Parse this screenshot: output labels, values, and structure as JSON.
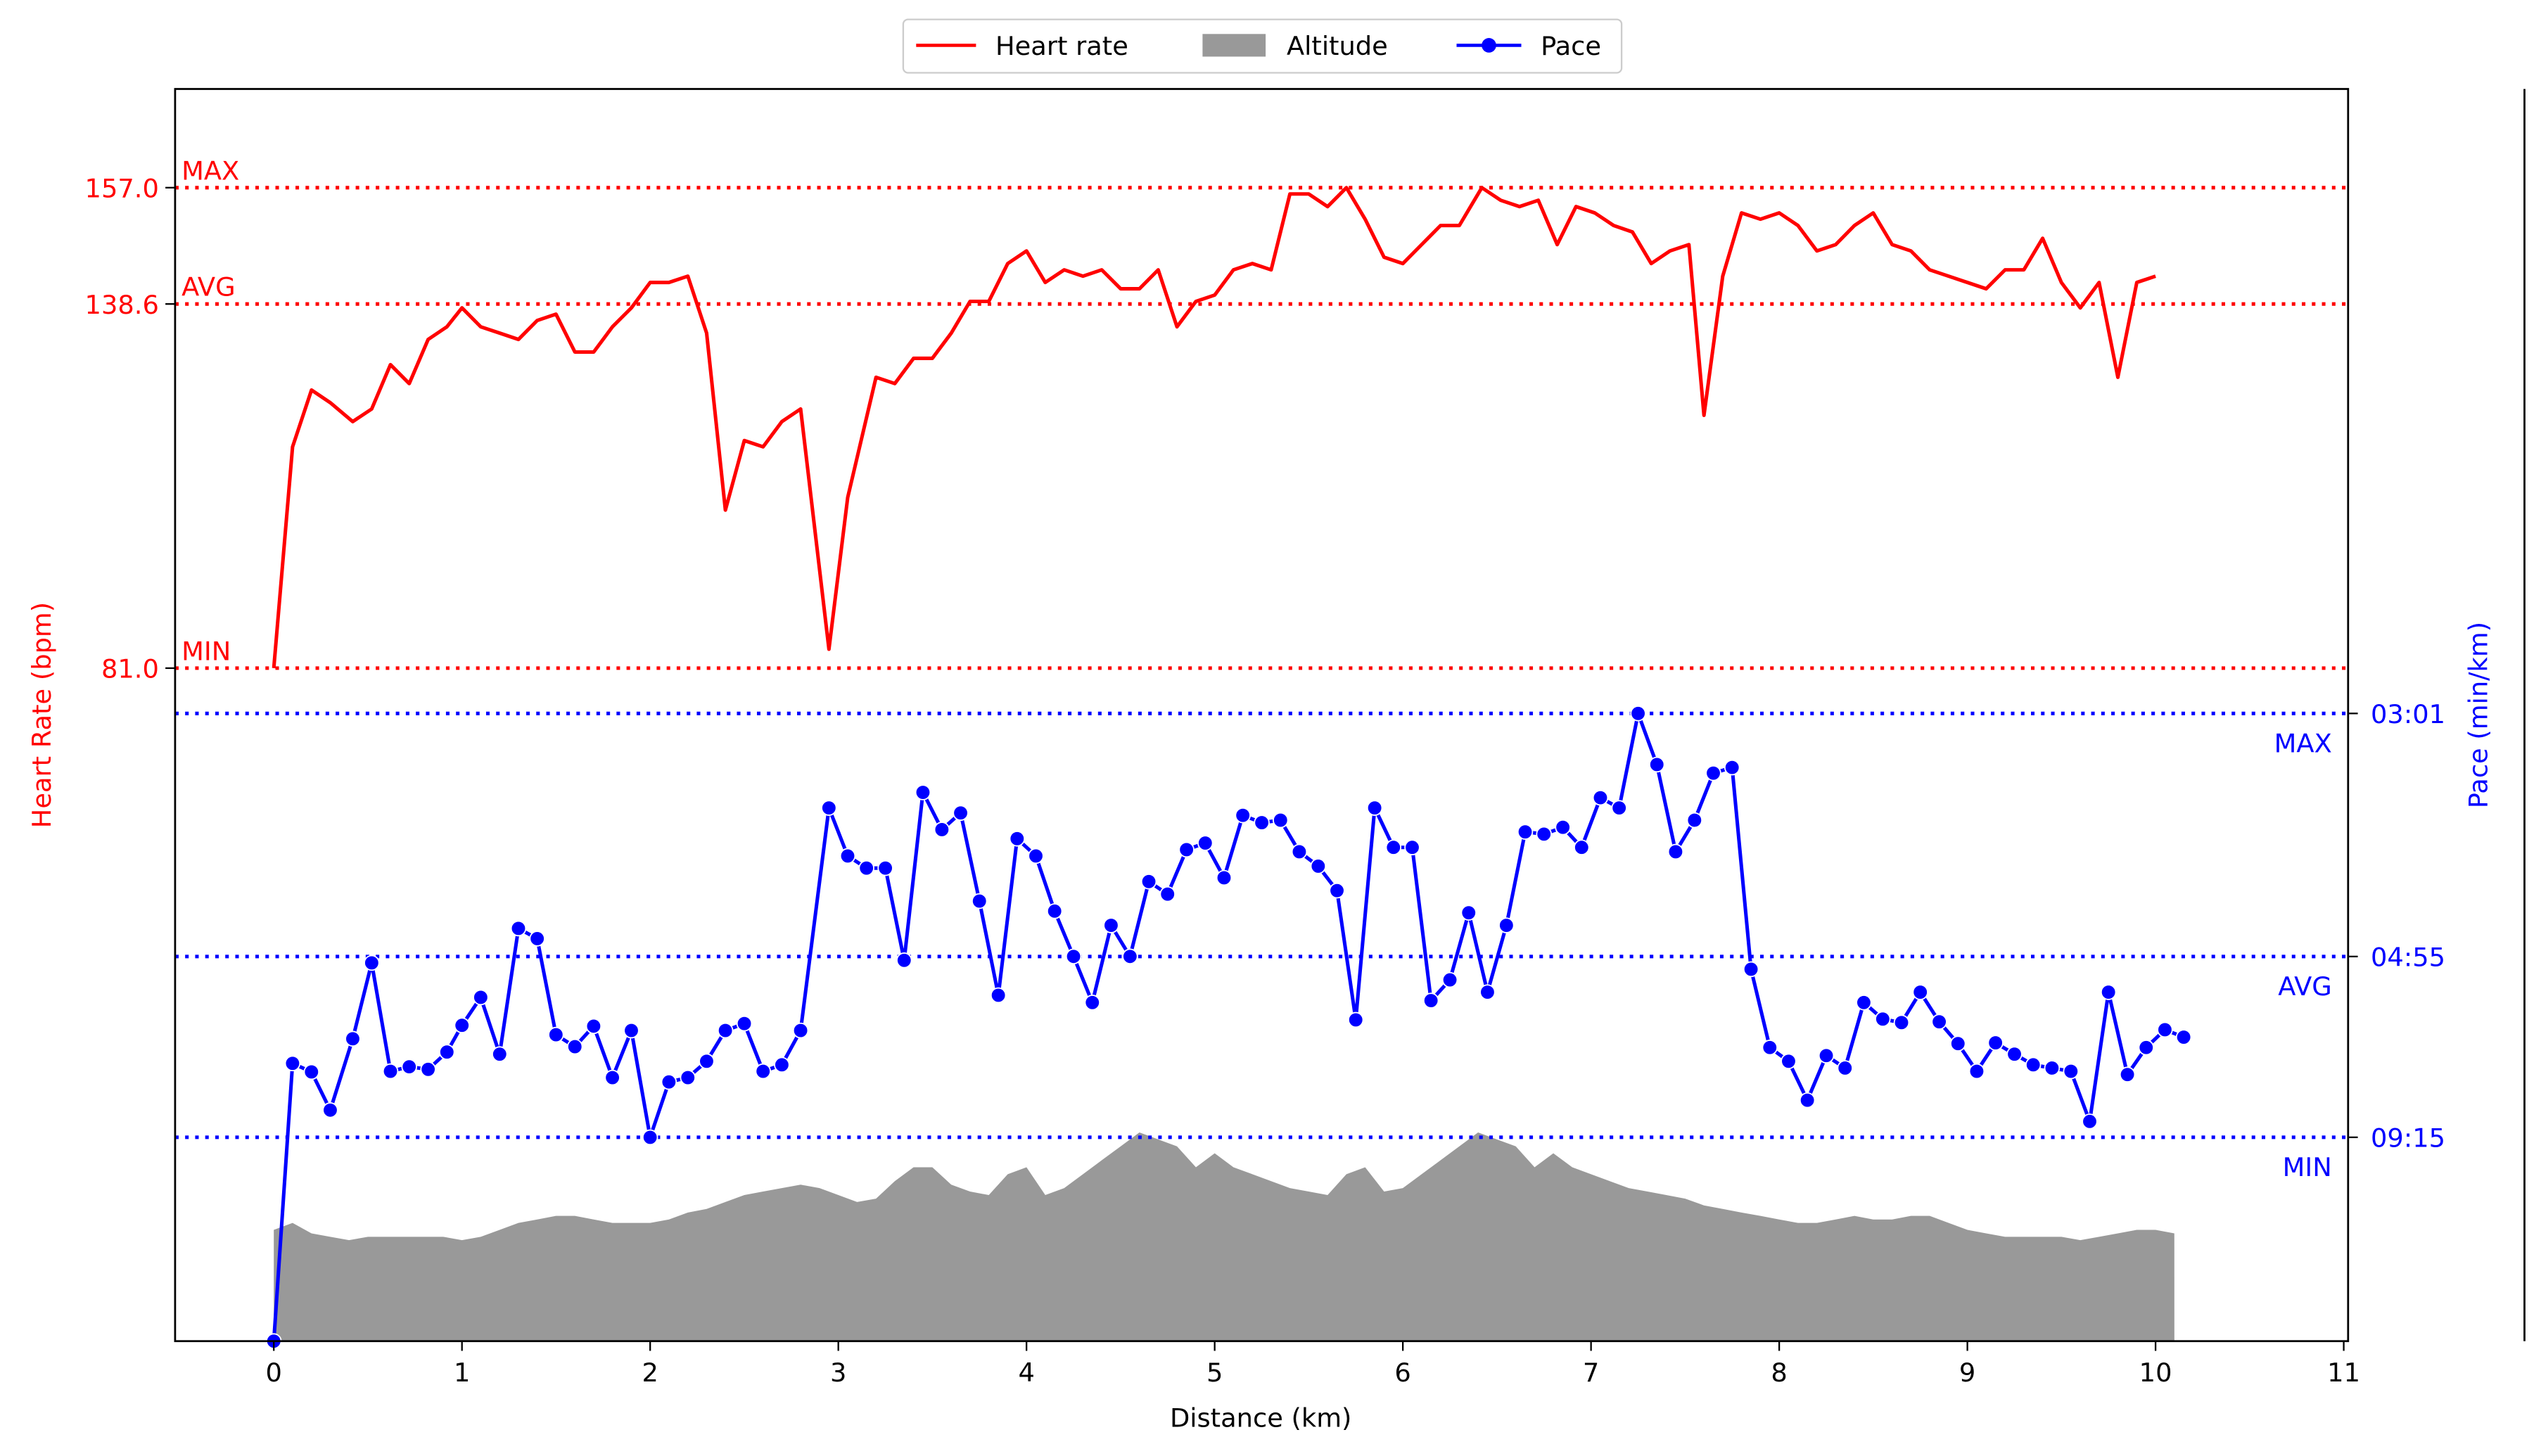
{
  "chart_data": {
    "type": "line",
    "xlabel": "Distance (km)",
    "ylabel_left": "Heart Rate (bpm)",
    "ylabel_right": "Pace (min/km)",
    "x_ticks": [
      "0",
      "1",
      "2",
      "3",
      "4",
      "5",
      "6",
      "7",
      "8",
      "9",
      "10",
      "11"
    ],
    "xlim": [
      -0.53,
      11.03
    ],
    "colors": {
      "heart_rate": "#ff0000",
      "pace": "#0000ff",
      "altitude": "#999999"
    },
    "legend": {
      "placement": "top-center",
      "items": [
        {
          "label": "Heart rate",
          "style": "line",
          "color": "#ff0000"
        },
        {
          "label": "Altitude",
          "style": "patch",
          "color": "#999999"
        },
        {
          "label": "Pace",
          "style": "line-marker",
          "color": "#0000ff"
        }
      ]
    },
    "heart_rate": {
      "axis": "left",
      "ylim": [
        5,
        176
      ],
      "ticks": [
        "157.0",
        "138.6",
        "81.0"
      ],
      "reference_lines": [
        {
          "label": "MAX",
          "value": 157.0
        },
        {
          "label": "AVG",
          "value": 138.6
        },
        {
          "label": "MIN",
          "value": 81.0
        }
      ],
      "points": [
        [
          0,
          81
        ],
        [
          0.1,
          116
        ],
        [
          0.2,
          125
        ],
        [
          0.3,
          123
        ],
        [
          0.42,
          120
        ],
        [
          0.52,
          122
        ],
        [
          0.62,
          129
        ],
        [
          0.72,
          126
        ],
        [
          0.82,
          133
        ],
        [
          0.92,
          135
        ],
        [
          1.0,
          138
        ],
        [
          1.1,
          135
        ],
        [
          1.2,
          134
        ],
        [
          1.3,
          133
        ],
        [
          1.4,
          136
        ],
        [
          1.5,
          137
        ],
        [
          1.6,
          131
        ],
        [
          1.7,
          131
        ],
        [
          1.8,
          135
        ],
        [
          1.9,
          138
        ],
        [
          2.0,
          142
        ],
        [
          2.1,
          142
        ],
        [
          2.2,
          143
        ],
        [
          2.3,
          134
        ],
        [
          2.4,
          106
        ],
        [
          2.5,
          117
        ],
        [
          2.6,
          116
        ],
        [
          2.7,
          120
        ],
        [
          2.8,
          122
        ],
        [
          2.95,
          84
        ],
        [
          3.05,
          108
        ],
        [
          3.2,
          127
        ],
        [
          3.3,
          126
        ],
        [
          3.4,
          130
        ],
        [
          3.5,
          130
        ],
        [
          3.6,
          134
        ],
        [
          3.7,
          139
        ],
        [
          3.8,
          139
        ],
        [
          3.9,
          145
        ],
        [
          4.0,
          147
        ],
        [
          4.1,
          142
        ],
        [
          4.2,
          144
        ],
        [
          4.3,
          143
        ],
        [
          4.4,
          144
        ],
        [
          4.5,
          141
        ],
        [
          4.6,
          141
        ],
        [
          4.7,
          144
        ],
        [
          4.8,
          135
        ],
        [
          4.9,
          139
        ],
        [
          5.0,
          140
        ],
        [
          5.1,
          144
        ],
        [
          5.2,
          145
        ],
        [
          5.3,
          144
        ],
        [
          5.4,
          156
        ],
        [
          5.5,
          156
        ],
        [
          5.6,
          154
        ],
        [
          5.7,
          157
        ],
        [
          5.8,
          152
        ],
        [
          5.9,
          146
        ],
        [
          6.0,
          145
        ],
        [
          6.1,
          148
        ],
        [
          6.2,
          151
        ],
        [
          6.3,
          151
        ],
        [
          6.42,
          157
        ],
        [
          6.52,
          155
        ],
        [
          6.62,
          154
        ],
        [
          6.72,
          155
        ],
        [
          6.82,
          148
        ],
        [
          6.92,
          154
        ],
        [
          7.02,
          153
        ],
        [
          7.12,
          151
        ],
        [
          7.22,
          150
        ],
        [
          7.32,
          145
        ],
        [
          7.42,
          147
        ],
        [
          7.52,
          148
        ],
        [
          7.6,
          121
        ],
        [
          7.7,
          143
        ],
        [
          7.8,
          153
        ],
        [
          7.9,
          152
        ],
        [
          8.0,
          153
        ],
        [
          8.1,
          151
        ],
        [
          8.2,
          147
        ],
        [
          8.3,
          148
        ],
        [
          8.4,
          151
        ],
        [
          8.5,
          153
        ],
        [
          8.6,
          148
        ],
        [
          8.7,
          147
        ],
        [
          8.8,
          144
        ],
        [
          8.9,
          143
        ],
        [
          9.0,
          142
        ],
        [
          9.1,
          141
        ],
        [
          9.2,
          144
        ],
        [
          9.3,
          144
        ],
        [
          9.4,
          149
        ],
        [
          9.5,
          142
        ],
        [
          9.6,
          138
        ],
        [
          9.7,
          142
        ],
        [
          9.8,
          127
        ],
        [
          9.9,
          142
        ],
        [
          10.0,
          143
        ]
      ]
    },
    "pace": {
      "axis": "right",
      "ticks": [
        "03:01",
        "04:55",
        "09:15"
      ],
      "scale_note": "reciprocal",
      "reference_lines": [
        {
          "label": "MAX",
          "value": "03:01"
        },
        {
          "label": "AVG",
          "value": "04:55"
        },
        {
          "label": "MIN",
          "value": "09:15"
        }
      ],
      "points": [
        [
          0,
          "∞"
        ],
        [
          0.1,
          "06:48"
        ],
        [
          0.2,
          "07:01"
        ],
        [
          0.3,
          "08:10"
        ],
        [
          0.42,
          "06:15"
        ],
        [
          0.52,
          "05:00"
        ],
        [
          0.62,
          "07:00"
        ],
        [
          0.72,
          "06:53"
        ],
        [
          0.82,
          "06:57"
        ],
        [
          0.92,
          "06:32"
        ],
        [
          1.0,
          "05:59"
        ],
        [
          1.1,
          "05:30"
        ],
        [
          1.2,
          "06:35"
        ],
        [
          1.3,
          "04:35"
        ],
        [
          1.4,
          "04:42"
        ],
        [
          1.5,
          "06:10"
        ],
        [
          1.6,
          "06:25"
        ],
        [
          1.7,
          "06:00"
        ],
        [
          1.8,
          "07:10"
        ],
        [
          1.9,
          "06:05"
        ],
        [
          2.0,
          "09:15"
        ],
        [
          2.1,
          "07:17"
        ],
        [
          2.2,
          "07:10"
        ],
        [
          2.3,
          "06:45"
        ],
        [
          2.4,
          "06:05"
        ],
        [
          2.5,
          "05:57"
        ],
        [
          2.6,
          "07:00"
        ],
        [
          2.7,
          "06:50"
        ],
        [
          2.8,
          "06:05"
        ],
        [
          2.95,
          "03:33"
        ],
        [
          3.05,
          "03:54"
        ],
        [
          3.15,
          "04:00"
        ],
        [
          3.25,
          "04:00"
        ],
        [
          3.35,
          "04:58"
        ],
        [
          3.45,
          "03:27"
        ],
        [
          3.55,
          "03:42"
        ],
        [
          3.65,
          "03:35"
        ],
        [
          3.75,
          "04:18"
        ],
        [
          3.85,
          "05:28"
        ],
        [
          3.95,
          "03:46"
        ],
        [
          4.05,
          "03:54"
        ],
        [
          4.15,
          "04:24"
        ],
        [
          4.25,
          "04:55"
        ],
        [
          4.35,
          "05:35"
        ],
        [
          4.45,
          "04:33"
        ],
        [
          4.55,
          "04:55"
        ],
        [
          4.65,
          "04:07"
        ],
        [
          4.75,
          "04:14"
        ],
        [
          4.85,
          "03:51"
        ],
        [
          4.95,
          "03:48"
        ],
        [
          5.05,
          "04:05"
        ],
        [
          5.15,
          "03:36"
        ],
        [
          5.25,
          "03:39"
        ],
        [
          5.35,
          "03:38"
        ],
        [
          5.45,
          "03:52"
        ],
        [
          5.55,
          "03:59"
        ],
        [
          5.65,
          "04:12"
        ],
        [
          5.75,
          "05:53"
        ],
        [
          5.85,
          "03:33"
        ],
        [
          5.95,
          "03:50"
        ],
        [
          6.05,
          "03:50"
        ],
        [
          6.15,
          "05:33"
        ],
        [
          6.25,
          "05:14"
        ],
        [
          6.35,
          "04:25"
        ],
        [
          6.45,
          "05:25"
        ],
        [
          6.55,
          "04:33"
        ],
        [
          6.65,
          "03:43"
        ],
        [
          6.75,
          "03:44"
        ],
        [
          6.85,
          "03:41"
        ],
        [
          6.95,
          "03:50"
        ],
        [
          7.05,
          "03:29"
        ],
        [
          7.15,
          "03:33"
        ],
        [
          7.25,
          "03:01"
        ],
        [
          7.35,
          "03:17"
        ],
        [
          7.45,
          "03:52"
        ],
        [
          7.55,
          "03:38"
        ],
        [
          7.65,
          "03:20"
        ],
        [
          7.75,
          "03:18"
        ],
        [
          7.85,
          "05:05"
        ],
        [
          7.95,
          "06:26"
        ],
        [
          8.05,
          "06:45"
        ],
        [
          8.15,
          "07:50"
        ],
        [
          8.25,
          "06:37"
        ],
        [
          8.35,
          "06:55"
        ],
        [
          8.45,
          "05:35"
        ],
        [
          8.55,
          "05:52"
        ],
        [
          8.65,
          "05:56"
        ],
        [
          8.75,
          "05:25"
        ],
        [
          8.85,
          "05:55"
        ],
        [
          8.95,
          "06:21"
        ],
        [
          9.05,
          "07:00"
        ],
        [
          9.15,
          "06:20"
        ],
        [
          9.25,
          "06:35"
        ],
        [
          9.35,
          "06:50"
        ],
        [
          9.45,
          "06:55"
        ],
        [
          9.55,
          "07:00"
        ],
        [
          9.65,
          "08:35"
        ],
        [
          9.75,
          "05:25"
        ],
        [
          9.85,
          "07:05"
        ],
        [
          9.95,
          "06:26"
        ],
        [
          10.05,
          "06:04"
        ],
        [
          10.15,
          "06:13"
        ]
      ]
    },
    "altitude": {
      "points": [
        [
          0,
          0.32
        ],
        [
          0.1,
          0.34
        ],
        [
          0.2,
          0.31
        ],
        [
          0.3,
          0.3
        ],
        [
          0.4,
          0.29
        ],
        [
          0.5,
          0.3
        ],
        [
          0.6,
          0.3
        ],
        [
          0.7,
          0.3
        ],
        [
          0.8,
          0.3
        ],
        [
          0.9,
          0.3
        ],
        [
          1.0,
          0.29
        ],
        [
          1.1,
          0.3
        ],
        [
          1.2,
          0.32
        ],
        [
          1.3,
          0.34
        ],
        [
          1.4,
          0.35
        ],
        [
          1.5,
          0.36
        ],
        [
          1.6,
          0.36
        ],
        [
          1.7,
          0.35
        ],
        [
          1.8,
          0.34
        ],
        [
          1.9,
          0.34
        ],
        [
          2.0,
          0.34
        ],
        [
          2.1,
          0.35
        ],
        [
          2.2,
          0.37
        ],
        [
          2.3,
          0.38
        ],
        [
          2.4,
          0.4
        ],
        [
          2.5,
          0.42
        ],
        [
          2.6,
          0.43
        ],
        [
          2.7,
          0.44
        ],
        [
          2.8,
          0.45
        ],
        [
          2.9,
          0.44
        ],
        [
          3.0,
          0.42
        ],
        [
          3.1,
          0.4
        ],
        [
          3.2,
          0.41
        ],
        [
          3.3,
          0.46
        ],
        [
          3.4,
          0.5
        ],
        [
          3.5,
          0.5
        ],
        [
          3.6,
          0.45
        ],
        [
          3.7,
          0.43
        ],
        [
          3.8,
          0.42
        ],
        [
          3.9,
          0.48
        ],
        [
          4.0,
          0.5
        ],
        [
          4.1,
          0.42
        ],
        [
          4.2,
          0.44
        ],
        [
          4.3,
          0.48
        ],
        [
          4.4,
          0.52
        ],
        [
          4.5,
          0.56
        ],
        [
          4.6,
          0.6
        ],
        [
          4.7,
          0.58
        ],
        [
          4.8,
          0.56
        ],
        [
          4.9,
          0.5
        ],
        [
          5.0,
          0.54
        ],
        [
          5.1,
          0.5
        ],
        [
          5.2,
          0.48
        ],
        [
          5.3,
          0.46
        ],
        [
          5.4,
          0.44
        ],
        [
          5.5,
          0.43
        ],
        [
          5.6,
          0.42
        ],
        [
          5.7,
          0.48
        ],
        [
          5.8,
          0.5
        ],
        [
          5.9,
          0.43
        ],
        [
          6.0,
          0.44
        ],
        [
          6.1,
          0.48
        ],
        [
          6.2,
          0.52
        ],
        [
          6.3,
          0.56
        ],
        [
          6.4,
          0.6
        ],
        [
          6.5,
          0.58
        ],
        [
          6.6,
          0.56
        ],
        [
          6.7,
          0.5
        ],
        [
          6.8,
          0.54
        ],
        [
          6.9,
          0.5
        ],
        [
          7.0,
          0.48
        ],
        [
          7.1,
          0.46
        ],
        [
          7.2,
          0.44
        ],
        [
          7.3,
          0.43
        ],
        [
          7.4,
          0.42
        ],
        [
          7.5,
          0.41
        ],
        [
          7.6,
          0.39
        ],
        [
          7.7,
          0.38
        ],
        [
          7.8,
          0.37
        ],
        [
          7.9,
          0.36
        ],
        [
          8.0,
          0.35
        ],
        [
          8.1,
          0.34
        ],
        [
          8.2,
          0.34
        ],
        [
          8.3,
          0.35
        ],
        [
          8.4,
          0.36
        ],
        [
          8.5,
          0.35
        ],
        [
          8.6,
          0.35
        ],
        [
          8.7,
          0.36
        ],
        [
          8.8,
          0.36
        ],
        [
          8.9,
          0.34
        ],
        [
          9.0,
          0.32
        ],
        [
          9.1,
          0.31
        ],
        [
          9.2,
          0.3
        ],
        [
          9.3,
          0.3
        ],
        [
          9.4,
          0.3
        ],
        [
          9.5,
          0.3
        ],
        [
          9.6,
          0.29
        ],
        [
          9.7,
          0.3
        ],
        [
          9.8,
          0.31
        ],
        [
          9.9,
          0.32
        ],
        [
          10.0,
          0.32
        ],
        [
          10.1,
          0.31
        ]
      ]
    }
  }
}
